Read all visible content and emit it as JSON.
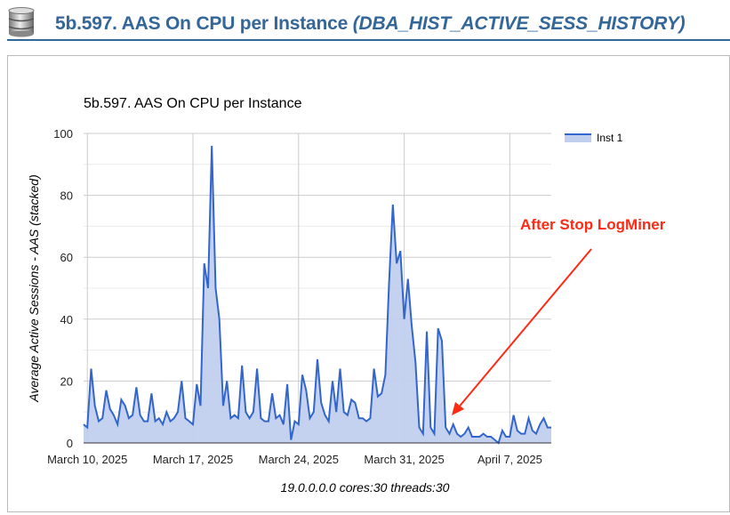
{
  "header": {
    "title": "5b.597. AAS On CPU per Instance ",
    "title_italic": "(DBA_HIST_ACTIVE_SESS_HISTORY)",
    "icon": "database-icon"
  },
  "footer": "19.0.0.0.0 cores:30 threads:30",
  "annotation": {
    "text": "After Stop LogMiner",
    "color": "#ff2a14"
  },
  "chart_data": {
    "type": "area",
    "title": "5b.597. AAS On CPU per Instance",
    "ylabel": "Average Active Sessions - AAS (stacked)",
    "xlabel": "",
    "ylim": [
      0,
      100
    ],
    "yticks": [
      0,
      20,
      40,
      60,
      80,
      100
    ],
    "xticks": [
      {
        "date": "2025-03-10",
        "label": "March 10, 2025"
      },
      {
        "date": "2025-03-17",
        "label": "March 17, 2025"
      },
      {
        "date": "2025-03-24",
        "label": "March 24, 2025"
      },
      {
        "date": "2025-03-31",
        "label": "March 31, 2025"
      },
      {
        "date": "2025-04-07",
        "label": "April 7, 2025"
      }
    ],
    "grid": true,
    "legend": "right",
    "series": [
      {
        "name": "Inst 1",
        "color": "#3366cc",
        "fill": "#c1cfee",
        "x_start": "2025-03-09T18:00",
        "x_step_hours": 6,
        "values": [
          6,
          5,
          24,
          12,
          7,
          8,
          17,
          11,
          9,
          6,
          14,
          12,
          8,
          9,
          18,
          9,
          7,
          7,
          16,
          7,
          8,
          6,
          10,
          7,
          8,
          10,
          20,
          8,
          7,
          6,
          19,
          12,
          58,
          50,
          96,
          50,
          40,
          12,
          20,
          8,
          9,
          8,
          25,
          10,
          8,
          10,
          24,
          8,
          7,
          7,
          16,
          8,
          9,
          6,
          19,
          1,
          7,
          6,
          22,
          17,
          8,
          10,
          27,
          13,
          9,
          7,
          20,
          10,
          24,
          10,
          9,
          14,
          13,
          8,
          8,
          7,
          8,
          24,
          15,
          16,
          22,
          52,
          77,
          58,
          62,
          40,
          53,
          38,
          26,
          5,
          3,
          36,
          5,
          3,
          37,
          33,
          5,
          3,
          6,
          3,
          2,
          3,
          5,
          2,
          2,
          2,
          3,
          2,
          2,
          1,
          0,
          4,
          2,
          2,
          9,
          4,
          3,
          3,
          8,
          4,
          3,
          6,
          8,
          5,
          5
        ]
      }
    ]
  }
}
